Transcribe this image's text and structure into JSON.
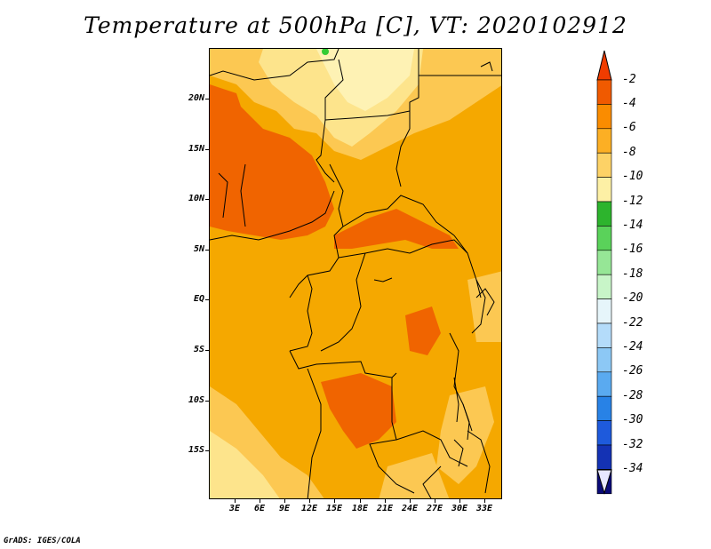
{
  "title": "Temperature at 500hPa [C], VT: 2020102912",
  "footer": "GrADS: IGES/COLA",
  "latitude_labels": [
    "20N",
    "15N",
    "10N",
    "5N",
    "EQ",
    "5S",
    "10S",
    "15S"
  ],
  "longitude_labels": [
    "3E",
    "6E",
    "9E",
    "12E",
    "15E",
    "18E",
    "21E",
    "24E",
    "27E",
    "30E",
    "33E"
  ],
  "colorbar": {
    "labels": [
      "-2",
      "-4",
      "-6",
      "-8",
      "-10",
      "-12",
      "-14",
      "-16",
      "-18",
      "-20",
      "-22",
      "-24",
      "-26",
      "-28",
      "-30",
      "-32",
      "-34"
    ],
    "colors": [
      "#f05a00",
      "#fa8c00",
      "#fcaf24",
      "#fdd266",
      "#fdf0a5",
      "#2db42d",
      "#5ad25a",
      "#96e696",
      "#c8f5c8",
      "#e6f5fa",
      "#b4dcfa",
      "#8cc8f5",
      "#5aaaf0",
      "#2882e6",
      "#1e5adc",
      "#1432b4",
      "#0a0a78"
    ],
    "top_color": "#f03c00",
    "bottom_color": "#e6e6ff"
  },
  "map_colors": {
    "base": "#f5a800",
    "warm": "#f06400",
    "cool": "#fcc852",
    "cooler": "#fde48c",
    "coolest": "#fef2b4",
    "green": "#33cc33"
  }
}
